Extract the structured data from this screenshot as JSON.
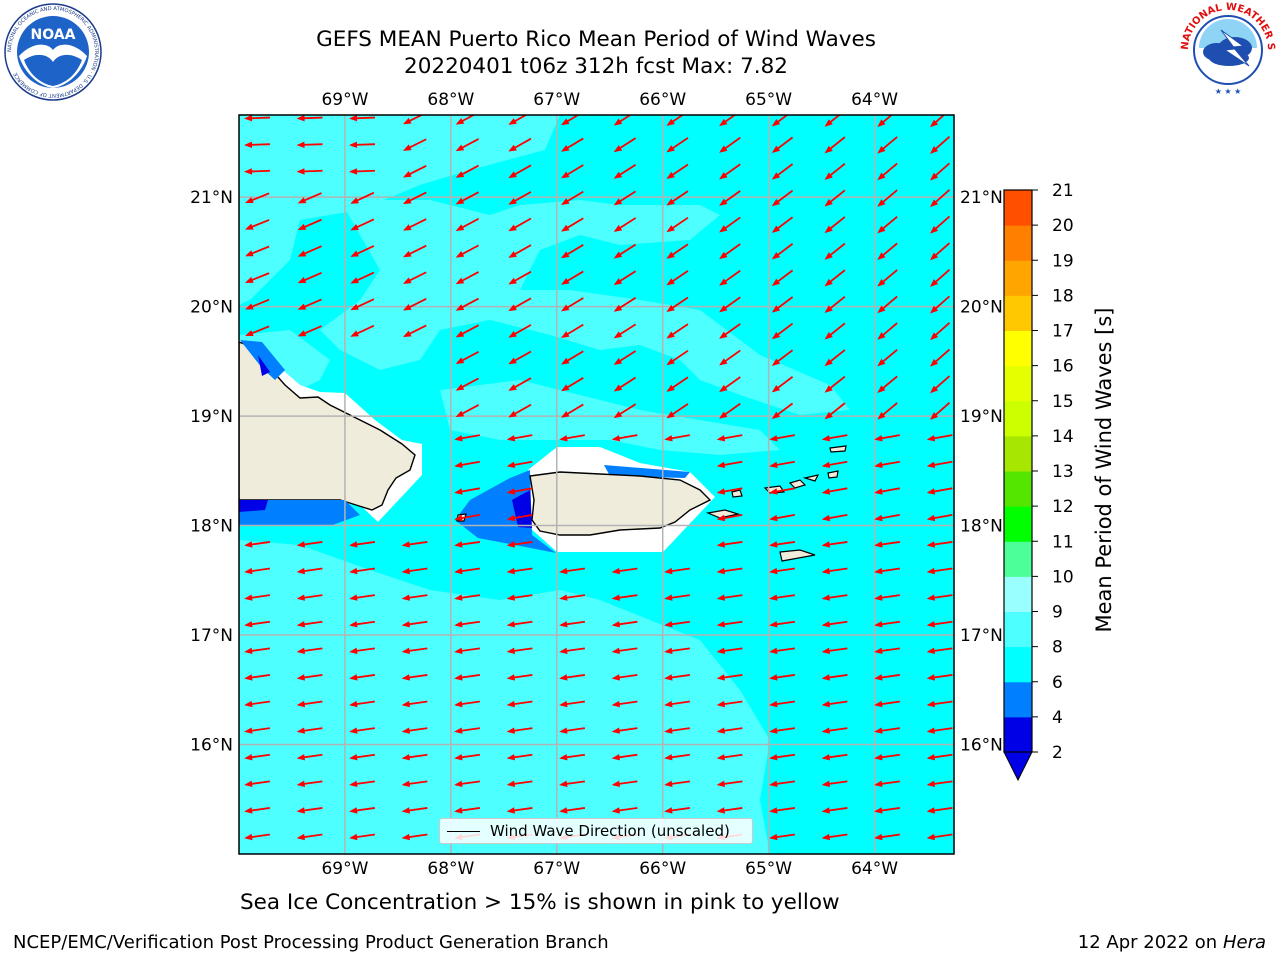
{
  "header": {
    "title_line1": "GEFS MEAN Puerto Rico Mean Period of Wind Waves",
    "title_line2": "20220401 t06z 312h fcst   Max: 7.82"
  },
  "logos": {
    "noaa": {
      "text": "NOAA",
      "ring_text": "NATIONAL OCEANIC AND ATMOSPHERIC ADMINISTRATION · U.S. DEPARTMENT OF COMMERCE"
    },
    "nws": {
      "ring_text": "NATIONAL WEATHER SERVICE"
    }
  },
  "map": {
    "lon_labels": [
      "69°W",
      "68°W",
      "67°W",
      "66°W",
      "65°W",
      "64°W"
    ],
    "lat_labels": [
      "21°N",
      "20°N",
      "19°N",
      "18°N",
      "17°N",
      "16°N"
    ],
    "lon_range": [
      -70.0,
      -63.25
    ],
    "lat_range": [
      15.0,
      21.75
    ],
    "colors": {
      "ocean_base": "#00ffff",
      "ocean_light": "#4dffff",
      "land": "#efecdc",
      "ocean_low": "#0080ff",
      "ocean_lowest": "#0000e6",
      "arrow": "#ff0000",
      "grid": "#b3b3b3"
    }
  },
  "legend": {
    "label": "Wind Wave Direction (unscaled)"
  },
  "colorbar": {
    "title": "Mean Period of Wind Waves [s]",
    "ticks": [
      "2",
      "4",
      "6",
      "8",
      "9",
      "10",
      "11",
      "12",
      "13",
      "14",
      "15",
      "16",
      "17",
      "18",
      "19",
      "20",
      "21"
    ],
    "colors": [
      "#0000e6",
      "#0080ff",
      "#00ffff",
      "#4dffff",
      "#99ffff",
      "#4dff99",
      "#00ff00",
      "#55e600",
      "#a6e600",
      "#ccff00",
      "#e6ff00",
      "#ffff00",
      "#ffc800",
      "#ffa500",
      "#ff8000",
      "#ff5000",
      "#ff2800",
      "#ff0000"
    ],
    "under_color": "#0000e6"
  },
  "footer": {
    "note": "Sea Ice Concentration > 15% is shown in pink to yellow",
    "left": "NCEP/EMC/Verification Post Processing Product Generation Branch",
    "date": "12 Apr 2022 on",
    "machine": "Hera"
  }
}
